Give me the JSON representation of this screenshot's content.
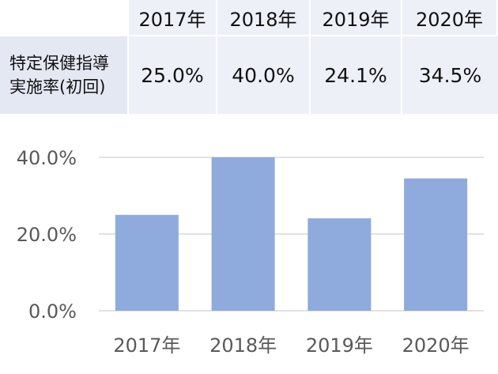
{
  "table": {
    "headers": [
      "2017年",
      "2018年",
      "2019年",
      "2020年"
    ],
    "row_label": "特定保健指導\n実施率(初回)",
    "values": [
      "25.0%",
      "40.0%",
      "24.1%",
      "34.5%"
    ]
  },
  "chart_data": {
    "type": "bar",
    "categories": [
      "2017年",
      "2018年",
      "2019年",
      "2020年"
    ],
    "values": [
      25.0,
      40.0,
      24.1,
      34.5
    ],
    "yticks": [
      "0.0%",
      "20.0%",
      "40.0%"
    ],
    "ytick_values": [
      0,
      20,
      40
    ],
    "ylim": [
      0,
      40
    ],
    "grid": true,
    "bar_color": "#8faadc",
    "grid_color": "#d9d9d9"
  }
}
